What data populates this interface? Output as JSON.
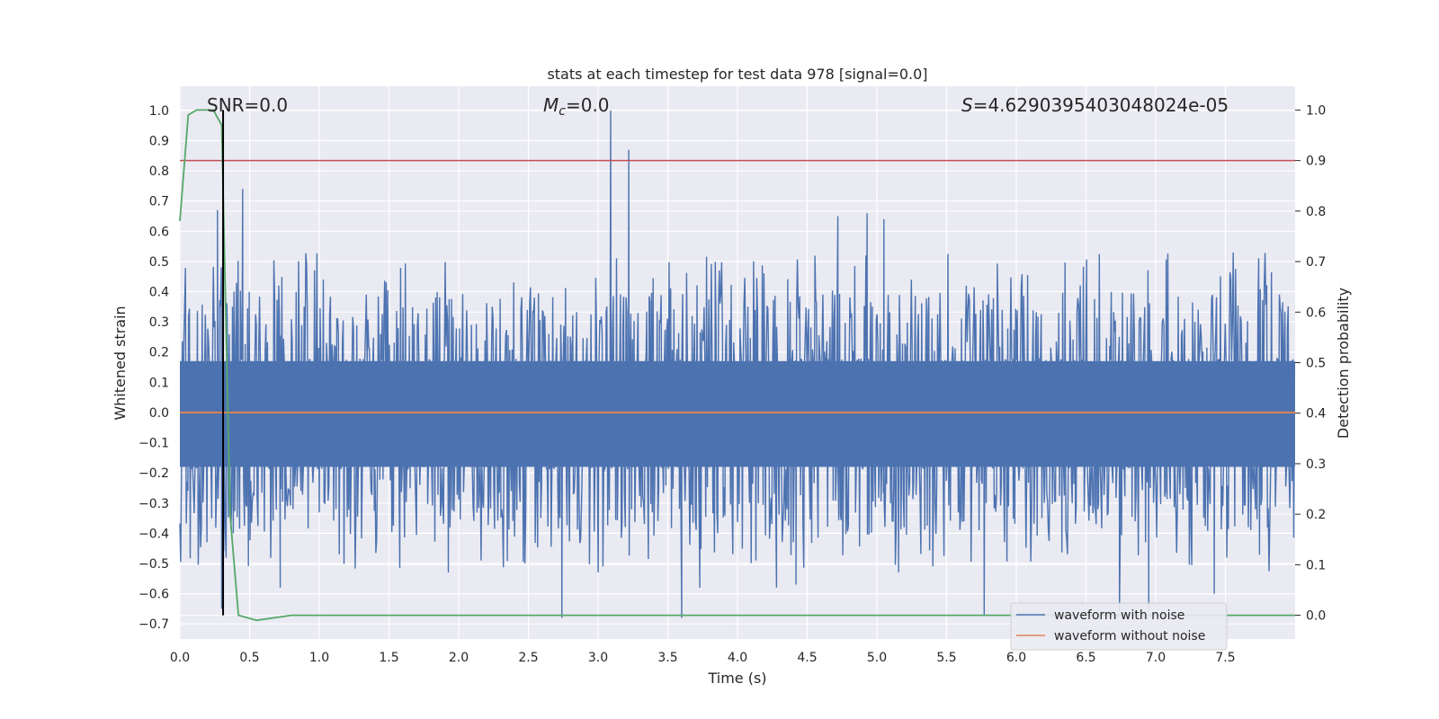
{
  "chart_data": {
    "type": "line",
    "title": "stats at each timestep for test data 978 [signal=0.0]",
    "xlabel": "Time (s)",
    "ylabel": "Whitened strain",
    "y2label": "Detection probability",
    "xlim": [
      0.0,
      8.0
    ],
    "ylim": [
      -0.75,
      1.08
    ],
    "y2lim": [
      -0.047,
      1.047
    ],
    "x_ticks": [
      0.0,
      0.5,
      1.0,
      1.5,
      2.0,
      2.5,
      3.0,
      3.5,
      4.0,
      4.5,
      5.0,
      5.5,
      6.0,
      6.5,
      7.0,
      7.5
    ],
    "y_ticks": [
      -0.7,
      -0.6,
      -0.5,
      -0.4,
      -0.3,
      -0.2,
      -0.1,
      0.0,
      0.1,
      0.2,
      0.3,
      0.4,
      0.5,
      0.6,
      0.7,
      0.8,
      0.9,
      1.0
    ],
    "y2_ticks": [
      0.0,
      0.1,
      0.2,
      0.3,
      0.4,
      0.5,
      0.6,
      0.7,
      0.8,
      0.9,
      1.0
    ],
    "x_tick_labels": [
      "0.0",
      "0.5",
      "1.0",
      "1.5",
      "2.0",
      "2.5",
      "3.0",
      "3.5",
      "4.0",
      "4.5",
      "5.0",
      "5.5",
      "6.0",
      "6.5",
      "7.0",
      "7.5"
    ],
    "y_tick_labels": [
      "−0.7",
      "−0.6",
      "−0.5",
      "−0.4",
      "−0.3",
      "−0.2",
      "−0.1",
      "0.0",
      "0.1",
      "0.2",
      "0.3",
      "0.4",
      "0.5",
      "0.6",
      "0.7",
      "0.8",
      "0.9",
      "1.0"
    ],
    "y2_tick_labels": [
      "0.0",
      "0.1",
      "0.2",
      "0.3",
      "0.4",
      "0.5",
      "0.6",
      "0.7",
      "0.8",
      "0.9",
      "1.0"
    ],
    "annotations": {
      "snr": "SNR=0.0",
      "mc_symbol": "M",
      "mc_sub": "c",
      "mc_value": "=0.0",
      "s_symbol": "S",
      "s_value": "=4.6290395403048024e-05"
    },
    "noise": {
      "seed": 978,
      "samples": 1400,
      "envelope_pos": 0.17,
      "envelope_neg": -0.18,
      "spikes": [
        {
          "x": 0.27,
          "y": 0.67
        },
        {
          "x": 0.45,
          "y": 0.74
        },
        {
          "x": 3.09,
          "y": 1.0
        },
        {
          "x": 3.22,
          "y": 0.87
        },
        {
          "x": 4.72,
          "y": 0.65
        },
        {
          "x": 4.93,
          "y": 0.66
        },
        {
          "x": 5.05,
          "y": 0.64
        },
        {
          "x": 2.74,
          "y": -0.68
        },
        {
          "x": 3.6,
          "y": -0.68
        },
        {
          "x": 5.77,
          "y": -0.67
        },
        {
          "x": 6.74,
          "y": -0.66
        },
        {
          "x": 6.95,
          "y": -0.65
        },
        {
          "x": 0.3,
          "y": -0.65
        },
        {
          "x": 0.72,
          "y": -0.58
        },
        {
          "x": 3.73,
          "y": -0.58
        },
        {
          "x": 4.42,
          "y": -0.57
        },
        {
          "x": 4.28,
          "y": -0.58
        },
        {
          "x": 7.42,
          "y": -0.6
        }
      ]
    },
    "series": [
      {
        "name": "waveform with noise",
        "color": "#4c72b0"
      },
      {
        "name": "waveform without noise",
        "color": "#dd8452",
        "value": 0.0
      },
      {
        "name": "detection probability",
        "color": "#55a868",
        "x": [
          0.0,
          0.06,
          0.12,
          0.18,
          0.24,
          0.3,
          0.36,
          0.42,
          0.55,
          0.8,
          8.0
        ],
        "y": [
          0.78,
          0.99,
          1.0,
          1.0,
          1.0,
          0.97,
          0.2,
          0.0,
          -0.01,
          0.0,
          0.0
        ]
      },
      {
        "name": "threshold",
        "color": "#c44e52",
        "y2": 0.9
      },
      {
        "name": "marker",
        "color": "#000000",
        "x": 0.31
      }
    ],
    "legend": {
      "position": "lower-right",
      "items": [
        "waveform with noise",
        "waveform without noise"
      ]
    }
  }
}
